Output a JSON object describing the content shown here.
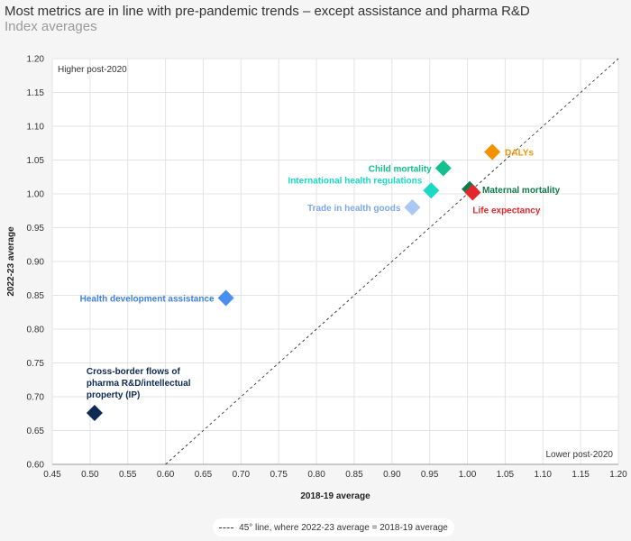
{
  "title": "Most metrics are in line with pre-pandemic trends – except assistance and pharma R&D",
  "subtitle": "Index averages",
  "chart_data": {
    "type": "scatter",
    "xlabel": "2018-19 average",
    "ylabel": "2022-23 average",
    "xlim": [
      0.45,
      1.2
    ],
    "ylim": [
      0.6,
      1.2
    ],
    "xticks": [
      "0.45",
      "0.50",
      "0.55",
      "0.60",
      "0.65",
      "0.70",
      "0.75",
      "0.80",
      "0.85",
      "0.90",
      "0.95",
      "1.00",
      "1.05",
      "1.10",
      "1.15",
      "1.20"
    ],
    "yticks": [
      "0.60",
      "0.65",
      "0.70",
      "0.75",
      "0.80",
      "0.85",
      "0.90",
      "0.95",
      "1.00",
      "1.05",
      "1.10",
      "1.15",
      "1.20"
    ],
    "grid": true,
    "reference_line": "45° line, where 2022-23 average = 2018-19 average",
    "annotations": [
      "Higher post-2020",
      "Lower post-2020"
    ],
    "points": [
      {
        "label": "DALYs",
        "x": 1.033,
        "y": 1.062,
        "color": "#f39200",
        "label_color": "#f39200",
        "label_pos": "right"
      },
      {
        "label": "Child mortality",
        "x": 0.968,
        "y": 1.038,
        "color": "#14c08f",
        "label_color": "#14c08f",
        "label_pos": "left"
      },
      {
        "label": "International health regulations",
        "x": 0.952,
        "y": 1.005,
        "color": "#1cd9c6",
        "label_color": "#1cd9c6",
        "label_pos": "left-up"
      },
      {
        "label": "Maternal mortality",
        "x": 1.003,
        "y": 1.007,
        "color": "#127a4a",
        "label_color": "#127a4a",
        "label_pos": "right"
      },
      {
        "label": "Life expectancy",
        "x": 1.007,
        "y": 1.002,
        "color": "#e4262a",
        "label_color": "#e4262a",
        "label_pos": "right-down"
      },
      {
        "label": "Trade in health goods",
        "x": 0.927,
        "y": 0.98,
        "color": "#a9c8f4",
        "label_color": "#7ba8ea",
        "label_pos": "left"
      },
      {
        "label": "Health development assistance",
        "x": 0.68,
        "y": 0.846,
        "color": "#4a8ef0",
        "label_color": "#3d7fe6",
        "label_pos": "left"
      },
      {
        "label": "Cross-border flows of pharma R&D/intellectual property (IP)",
        "label_lines": [
          "Cross-border flows of",
          "pharma R&D/intellectual",
          "property (IP)"
        ],
        "x": 0.506,
        "y": 0.676,
        "color": "#0e2a53",
        "label_color": "#0e2a53",
        "label_pos": "above"
      }
    ]
  }
}
